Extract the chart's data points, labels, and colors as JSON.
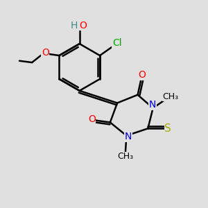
{
  "bg_color": "#e0e0e0",
  "bond_color": "#000000",
  "bond_width": 1.8,
  "atom_colors": {
    "C": "#000000",
    "H": "#3a8a8a",
    "O": "#ff0000",
    "N": "#0000cc",
    "S": "#aaaa00",
    "Cl": "#00aa00"
  },
  "font_size": 10,
  "font_size_small": 9
}
